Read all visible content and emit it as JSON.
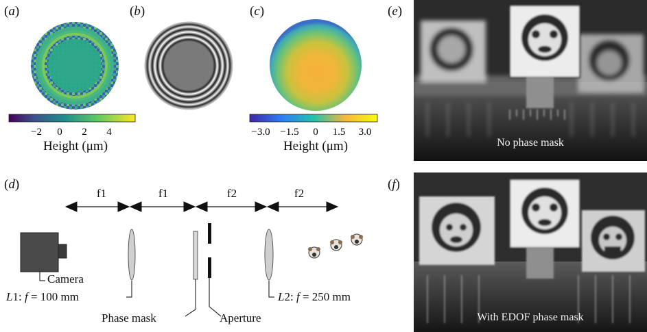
{
  "panels": {
    "a": {
      "letter": "a"
    },
    "b": {
      "letter": "b"
    },
    "c": {
      "letter": "c"
    },
    "d": {
      "letter": "d"
    },
    "e": {
      "letter": "e"
    },
    "f": {
      "letter": "f"
    }
  },
  "colorbar_a": {
    "ticks": [
      "−2",
      "0",
      "2",
      "4"
    ],
    "title": "Height (μm)"
  },
  "colorbar_c": {
    "ticks": [
      "−3.0",
      "−1.5",
      "0",
      "1.5",
      "3.0"
    ],
    "title": "Height (μm)"
  },
  "diagram": {
    "spacings": [
      "f1",
      "f1",
      "f2",
      "f2"
    ],
    "camera": "Camera",
    "lens1_prefix": "L",
    "lens1_num": "1: ",
    "lens1_f": "f",
    "lens1_value": " = 100 mm",
    "lens2_prefix": "L",
    "lens2_num": "2: ",
    "lens2_f": "f",
    "lens2_value": " = 250 mm",
    "phase_mask": "Phase mask",
    "aperture": "Aperture"
  },
  "photos": {
    "e_caption": "No phase mask",
    "f_caption": "With EDOF phase mask"
  },
  "colors": {
    "viridis_low": "#440154",
    "viridis_high": "#fde725"
  }
}
